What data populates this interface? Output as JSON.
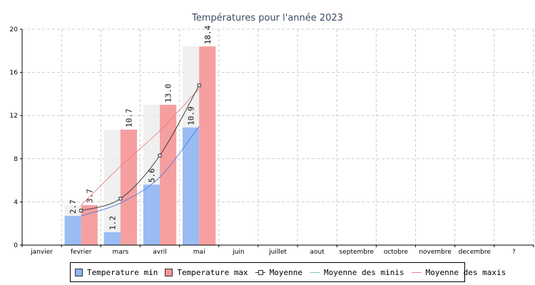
{
  "chart_data": {
    "type": "bar",
    "title": "Températures pour l'année 2023",
    "categories": [
      "janvier",
      "fevrier",
      "mars",
      "avril",
      "mai",
      "juin",
      "juillet",
      "aout",
      "septembre",
      "octobre",
      "novembre",
      "decembre",
      "?"
    ],
    "ylim": [
      0,
      20
    ],
    "yticks": [
      0,
      4,
      8,
      12,
      16,
      20
    ],
    "grid": true,
    "legend_position": "bottom",
    "series": [
      {
        "name": "Temperature min",
        "kind": "bar",
        "color": "#8fb4f3",
        "values": [
          null,
          2.7,
          1.2,
          5.6,
          10.9,
          null,
          null,
          null,
          null,
          null,
          null,
          null,
          null
        ],
        "labels": [
          "",
          "2.7",
          "1.2",
          "5.6",
          "10.9",
          "",
          "",
          "",
          "",
          "",
          "",
          "",
          ""
        ]
      },
      {
        "name": "Temperature max",
        "kind": "bar",
        "color": "#f59697",
        "values": [
          null,
          3.7,
          10.7,
          13.0,
          18.4,
          null,
          null,
          null,
          null,
          null,
          null,
          null,
          null
        ],
        "labels": [
          "",
          "3.7",
          "10.7",
          "13.0",
          "18.4",
          "",
          "",
          "",
          "",
          "",
          "",
          "",
          ""
        ]
      },
      {
        "name": "Moyenne",
        "kind": "line",
        "color": "#333333",
        "values": [
          null,
          3.2,
          4.3,
          8.3,
          14.8,
          null,
          null,
          null,
          null,
          null,
          null,
          null,
          null
        ]
      },
      {
        "name": "Moyenne des minis",
        "kind": "line",
        "color": "#4f7de0",
        "values": [
          null,
          2.7,
          3.9,
          6.3,
          11.0,
          null,
          null,
          null,
          null,
          null,
          null,
          null,
          null
        ]
      },
      {
        "name": "Moyenne des maxis",
        "kind": "line",
        "color": "#f08080",
        "values": [
          null,
          3.7,
          7.3,
          10.6,
          14.5,
          null,
          null,
          null,
          null,
          null,
          null,
          null,
          null
        ]
      }
    ]
  }
}
